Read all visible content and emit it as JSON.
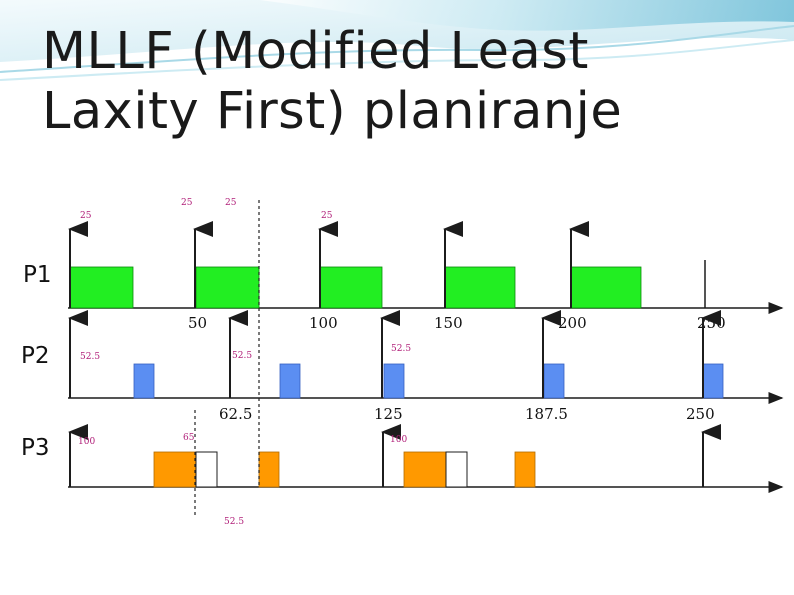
{
  "slide": {
    "title_line1": "MLLF (Modified Least",
    "title_line2": "Laxity First) planiranje"
  },
  "colors": {
    "p1_block": "#22ee22",
    "p2_block": "#5b8ef2",
    "p3_block": "#ff9900",
    "annotation": "#b01e78",
    "axis": "#1c1c1c",
    "header_wave": "#7ac3dc"
  },
  "diagram": {
    "time_range": [
      0,
      275
    ],
    "rows": [
      {
        "label": "P1",
        "ticks": [
          "50",
          "100",
          "150",
          "200",
          "250"
        ],
        "annotations": [
          "25",
          "25",
          "25",
          "25"
        ],
        "arrivals": [
          0,
          50,
          100,
          150,
          200,
          250
        ],
        "blocks": [
          {
            "start": 0,
            "end": 25,
            "fill": "p1"
          },
          {
            "start": 50,
            "end": 75,
            "fill": "p1"
          },
          {
            "start": 100,
            "end": 125,
            "fill": "p1"
          },
          {
            "start": 150,
            "end": 178,
            "fill": "p1"
          },
          {
            "start": 200,
            "end": 228,
            "fill": "p1"
          }
        ]
      },
      {
        "label": "P2",
        "ticks": [
          "62.5",
          "125",
          "187.5",
          "250"
        ],
        "annotations": [
          "52.5",
          "52.5",
          "52.5"
        ],
        "arrivals": [
          0,
          62.5,
          125,
          187.5,
          250
        ],
        "blocks": [
          {
            "start": 25,
            "end": 33,
            "fill": "p2"
          },
          {
            "start": 84,
            "end": 92,
            "fill": "p2"
          },
          {
            "start": 125,
            "end": 133,
            "fill": "p2"
          },
          {
            "start": 188,
            "end": 196,
            "fill": "p2"
          },
          {
            "start": 253,
            "end": 261,
            "fill": "p2"
          }
        ]
      },
      {
        "label": "P3",
        "ticks": [],
        "annotations": [
          "100",
          "65",
          "100",
          "52.5"
        ],
        "arrivals": [
          0,
          125,
          250
        ],
        "blocks": [
          {
            "start": 33,
            "end": 50,
            "fill": "p3"
          },
          {
            "start": 50,
            "end": 59,
            "fill": "none"
          },
          {
            "start": 75,
            "end": 83,
            "fill": "p3"
          },
          {
            "start": 133,
            "end": 150,
            "fill": "p3"
          },
          {
            "start": 150,
            "end": 158,
            "fill": "none"
          },
          {
            "start": 178,
            "end": 186,
            "fill": "p3"
          }
        ]
      }
    ],
    "dashed_markers": [
      50,
      75
    ]
  }
}
